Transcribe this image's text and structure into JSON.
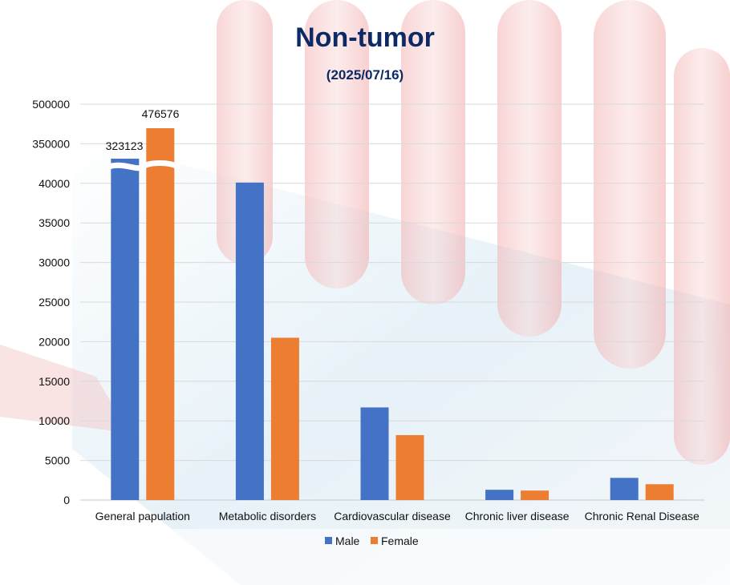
{
  "chart_data": {
    "type": "bar",
    "title": "Non-tumor",
    "subtitle": "(2025/07/16)",
    "categories": [
      "General papulation",
      "Metabolic disorders",
      "Cardiovascular disease",
      "Chronic liver disease",
      "Chronic Renal Disease"
    ],
    "series": [
      {
        "name": "Male",
        "color": "#4472C4",
        "values": [
          323123,
          40100,
          11700,
          1300,
          2800
        ]
      },
      {
        "name": "Female",
        "color": "#ED7D31",
        "values": [
          476576,
          20500,
          8200,
          1200,
          2000
        ]
      }
    ],
    "y_tick_labels": [
      "0",
      "5000",
      "10000",
      "15000",
      "20000",
      "25000",
      "30000",
      "35000",
      "40000",
      "350000",
      "500000"
    ],
    "ylim": [
      0,
      50000
    ],
    "axis_break": true,
    "data_labels": [
      "323123",
      "476576"
    ],
    "legend_position": "bottom",
    "grid": true
  }
}
